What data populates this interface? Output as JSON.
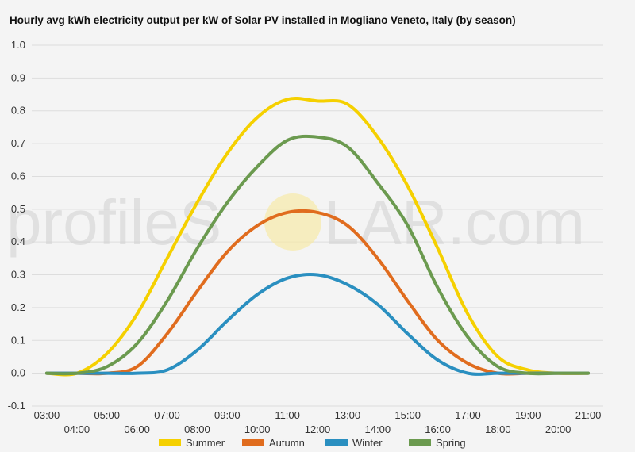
{
  "chart_data": {
    "type": "line",
    "title": "Hourly avg kWh electricity output per kW of Solar PV installed in Mogliano Veneto, Italy (by season)",
    "xlabel": "",
    "ylabel": "",
    "ylim": [
      -0.1,
      1.0
    ],
    "yticks": [
      "-0.1",
      "0.0",
      "0.1",
      "0.2",
      "0.3",
      "0.4",
      "0.5",
      "0.6",
      "0.7",
      "0.8",
      "0.9",
      "1.0"
    ],
    "x": [
      "03:00",
      "04:00",
      "05:00",
      "06:00",
      "07:00",
      "08:00",
      "09:00",
      "10:00",
      "11:00",
      "12:00",
      "13:00",
      "14:00",
      "15:00",
      "16:00",
      "17:00",
      "18:00",
      "19:00",
      "20:00",
      "21:00"
    ],
    "grid": true,
    "legend": "bottom",
    "series": [
      {
        "name": "Summer",
        "color": "#f5d000",
        "values": [
          0.0,
          0.0,
          0.06,
          0.18,
          0.35,
          0.52,
          0.67,
          0.78,
          0.835,
          0.83,
          0.82,
          0.72,
          0.57,
          0.38,
          0.18,
          0.05,
          0.01,
          0.0,
          0.0
        ]
      },
      {
        "name": "Autumn",
        "color": "#e06c1e",
        "values": [
          0.0,
          0.0,
          0.0,
          0.02,
          0.12,
          0.25,
          0.37,
          0.45,
          0.49,
          0.49,
          0.45,
          0.35,
          0.22,
          0.1,
          0.03,
          0.0,
          0.0,
          0.0,
          0.0
        ]
      },
      {
        "name": "Winter",
        "color": "#2a8fc0",
        "values": [
          0.0,
          0.0,
          0.0,
          0.0,
          0.01,
          0.07,
          0.16,
          0.24,
          0.29,
          0.3,
          0.27,
          0.21,
          0.12,
          0.04,
          0.0,
          0.0,
          0.0,
          0.0,
          0.0
        ]
      },
      {
        "name": "Spring",
        "color": "#6b9a4f",
        "values": [
          0.0,
          0.0,
          0.02,
          0.09,
          0.22,
          0.38,
          0.52,
          0.63,
          0.71,
          0.72,
          0.69,
          0.58,
          0.45,
          0.26,
          0.11,
          0.02,
          0.0,
          0.0,
          0.0
        ]
      }
    ]
  },
  "watermark": {
    "left": "profileS",
    "right": "LAR.com",
    "sun_color": "#f7e9a8"
  }
}
